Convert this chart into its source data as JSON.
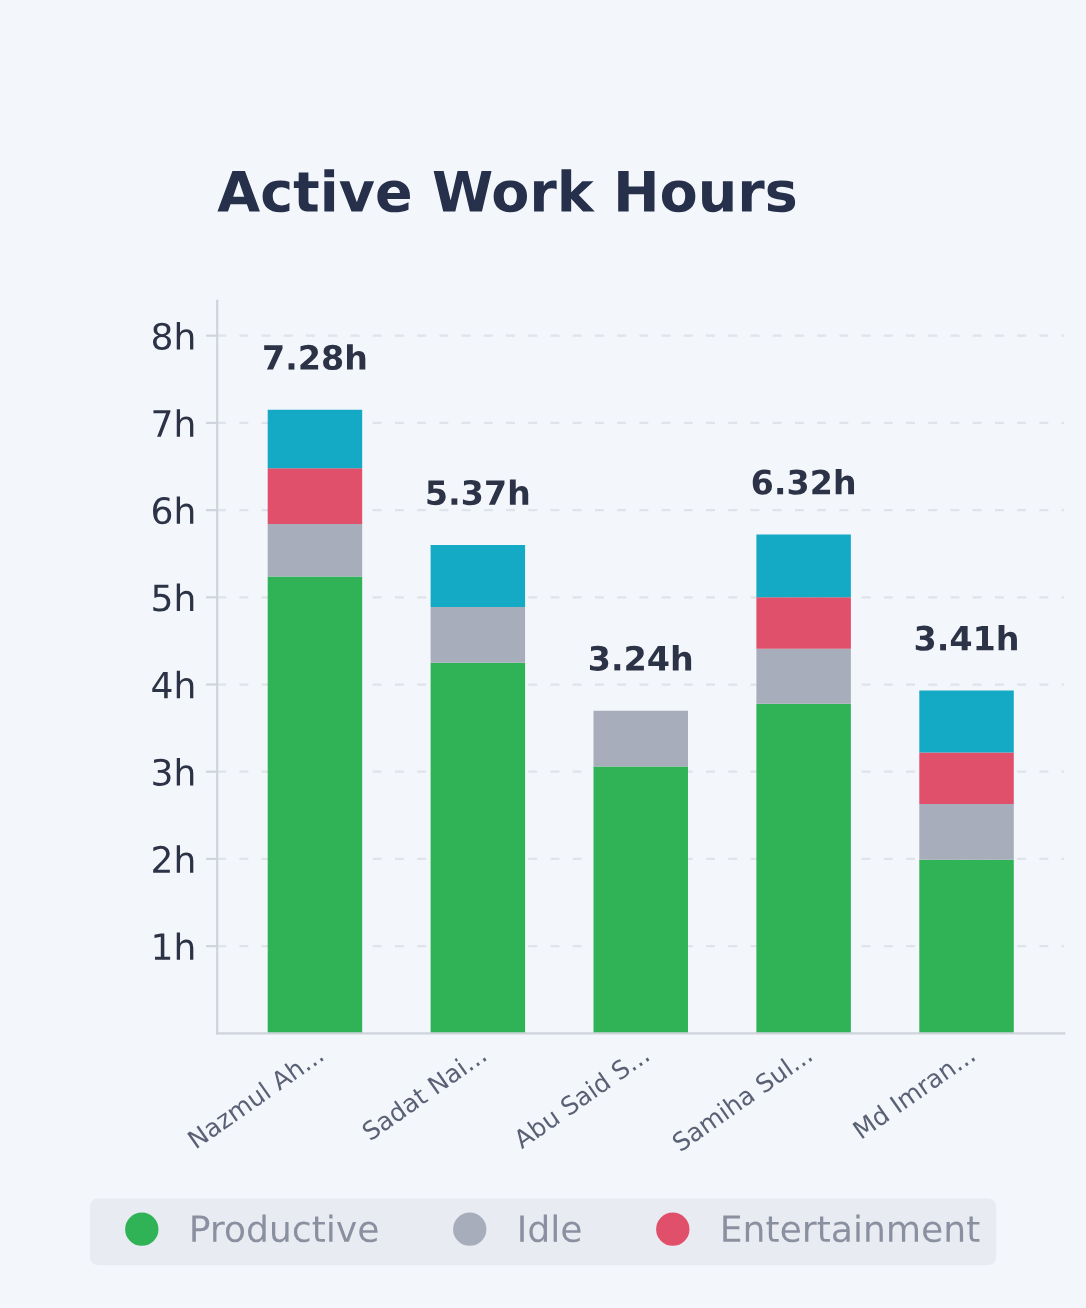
{
  "chart_data": {
    "type": "bar",
    "title": "Active Work Hours",
    "stacked": true,
    "categories": [
      "Nazmul Ah...",
      "Sadat Nai...",
      "Abu Said S...",
      "Samiha Sul...",
      "Md Imran..."
    ],
    "series": [
      {
        "name": "Productive",
        "color": "#2fb356",
        "values": [
          5.24,
          4.25,
          3.06,
          3.78,
          1.99
        ]
      },
      {
        "name": "Idle",
        "color": "#a8adbb",
        "values": [
          0.6,
          0.64,
          0.64,
          0.63,
          0.64
        ]
      },
      {
        "name": "Entertainment",
        "color": "#e0506a",
        "values": [
          0.64,
          0,
          0,
          0.59,
          0.59
        ]
      },
      {
        "color": "#14a9c4",
        "values": [
          0.67,
          0.71,
          0,
          0.72,
          0.71
        ]
      }
    ],
    "annotations": [
      {
        "text": "7.28h",
        "x": "Nazmul Ah...",
        "y": 7.15
      },
      {
        "text": "5.37h",
        "x": "Sadat Nai...",
        "y": 5.6
      },
      {
        "text": "3.24h",
        "x": "Abu Said S...",
        "y": 3.7
      },
      {
        "text": "6.32h",
        "x": "Samiha Sul...",
        "y": 5.72
      },
      {
        "text": "3.41h",
        "x": "Md Imran...",
        "y": 3.93
      }
    ],
    "ylim": [
      0,
      8.4
    ],
    "yticks": [
      {
        "value": 1,
        "label": "1h"
      },
      {
        "value": 2,
        "label": "2h"
      },
      {
        "value": 3,
        "label": "3h"
      },
      {
        "value": 4,
        "label": "4h"
      },
      {
        "value": 5,
        "label": "5h"
      },
      {
        "value": 6,
        "label": "6h"
      },
      {
        "value": 7,
        "label": "7h"
      },
      {
        "value": 8,
        "label": "8h"
      }
    ],
    "grid": "y",
    "legend": "bottom"
  }
}
